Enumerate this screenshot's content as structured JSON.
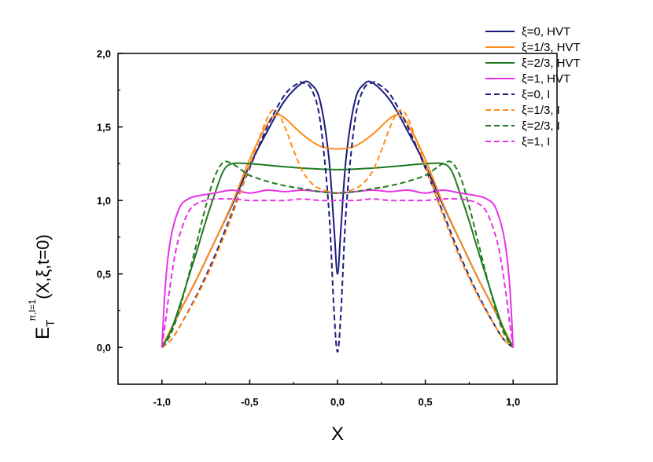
{
  "chart_data": {
    "type": "line",
    "title": "",
    "xlabel": "X",
    "ylabel": {
      "main": "E",
      "subscript": "T",
      "superscript": "π,l=1",
      "args": "(X,ξ,t=0)"
    },
    "xlim": [
      -1.25,
      1.25
    ],
    "ylim": [
      -0.25,
      2.0
    ],
    "xticks": [
      -1.0,
      -0.5,
      0.0,
      0.5,
      1.0
    ],
    "xtick_labels": [
      "-1,0",
      "-0,5",
      "0,0",
      "0,5",
      "1,0"
    ],
    "yticks": [
      0.0,
      0.5,
      1.0,
      1.5,
      2.0
    ],
    "ytick_labels": [
      "0,0",
      "0,5",
      "1,0",
      "1,5",
      "2,0"
    ],
    "grid": false,
    "legend_position": "top-right",
    "series": [
      {
        "name": "ξ=0, HVT",
        "color": "#1a1a7e",
        "style": "solid",
        "x": [
          0,
          0.02,
          0.05,
          0.1,
          0.15,
          0.2,
          0.3,
          0.4,
          0.5,
          0.6,
          0.7,
          0.8,
          0.9,
          1.0
        ],
        "y": [
          0.5,
          0.82,
          1.3,
          1.68,
          1.79,
          1.8,
          1.68,
          1.47,
          1.24,
          0.97,
          0.72,
          0.47,
          0.24,
          0.0
        ]
      },
      {
        "name": "ξ=1/3, HVT",
        "color": "#ff8c1a",
        "style": "solid",
        "x": [
          0,
          0.1,
          0.2,
          0.3,
          0.35,
          0.4,
          0.5,
          0.6,
          0.7,
          0.8,
          0.9,
          1.0
        ],
        "y": [
          1.35,
          1.37,
          1.45,
          1.56,
          1.58,
          1.52,
          1.28,
          0.98,
          0.72,
          0.47,
          0.24,
          0.0
        ]
      },
      {
        "name": "ξ=2/3, HVT",
        "color": "#1f7a1f",
        "style": "solid",
        "x": [
          0,
          0.2,
          0.4,
          0.5,
          0.6,
          0.65,
          0.7,
          0.75,
          0.8,
          0.85,
          0.9,
          0.95,
          1.0
        ],
        "y": [
          1.21,
          1.22,
          1.24,
          1.25,
          1.25,
          1.2,
          1.04,
          0.86,
          0.66,
          0.47,
          0.28,
          0.11,
          0.0
        ]
      },
      {
        "name": "ξ=1, HVT",
        "color": "#e633e6",
        "style": "solid",
        "x": [
          0,
          0.1,
          0.2,
          0.3,
          0.4,
          0.5,
          0.6,
          0.7,
          0.8,
          0.85,
          0.9,
          0.95,
          0.98,
          1.0
        ],
        "y": [
          1.05,
          1.06,
          1.07,
          1.06,
          1.07,
          1.05,
          1.07,
          1.05,
          1.03,
          1.01,
          0.95,
          0.74,
          0.43,
          0.0
        ]
      },
      {
        "name": "ξ=0, I",
        "color": "#1a1a7e",
        "style": "dashed",
        "x": [
          0,
          0.02,
          0.05,
          0.1,
          0.15,
          0.2,
          0.22,
          0.3,
          0.4,
          0.5,
          0.6,
          0.7,
          0.8,
          0.9,
          0.95,
          1.0
        ],
        "y": [
          -0.03,
          0.25,
          0.95,
          1.55,
          1.76,
          1.8,
          1.8,
          1.72,
          1.5,
          1.22,
          0.92,
          0.62,
          0.36,
          0.14,
          0.05,
          0.0
        ]
      },
      {
        "name": "ξ=1/3, I",
        "color": "#ff8c1a",
        "style": "dashed",
        "x": [
          0,
          0.1,
          0.15,
          0.2,
          0.25,
          0.3,
          0.35,
          0.4,
          0.5,
          0.6,
          0.7,
          0.8,
          0.9,
          0.95,
          1.0
        ],
        "y": [
          1.05,
          1.08,
          1.12,
          1.2,
          1.34,
          1.5,
          1.61,
          1.56,
          1.24,
          0.9,
          0.6,
          0.35,
          0.14,
          0.05,
          0.0
        ]
      },
      {
        "name": "ξ=2/3, I",
        "color": "#1f7a1f",
        "style": "dashed",
        "x": [
          0,
          0.1,
          0.2,
          0.3,
          0.4,
          0.5,
          0.55,
          0.6,
          0.65,
          0.7,
          0.75,
          0.8,
          0.85,
          0.9,
          0.95,
          1.0
        ],
        "y": [
          1.05,
          1.06,
          1.08,
          1.1,
          1.13,
          1.17,
          1.21,
          1.25,
          1.26,
          1.16,
          0.96,
          0.72,
          0.48,
          0.26,
          0.09,
          0.0
        ]
      },
      {
        "name": "ξ=1, I",
        "color": "#e633e6",
        "style": "dashed",
        "x": [
          0,
          0.1,
          0.2,
          0.3,
          0.4,
          0.5,
          0.6,
          0.7,
          0.75,
          0.8,
          0.85,
          0.9,
          0.93,
          0.96,
          0.98,
          1.0
        ],
        "y": [
          1.0,
          1.0,
          1.01,
          1.0,
          1.0,
          1.0,
          1.01,
          1.01,
          1.0,
          0.98,
          0.92,
          0.76,
          0.6,
          0.36,
          0.17,
          0.0
        ]
      }
    ]
  }
}
